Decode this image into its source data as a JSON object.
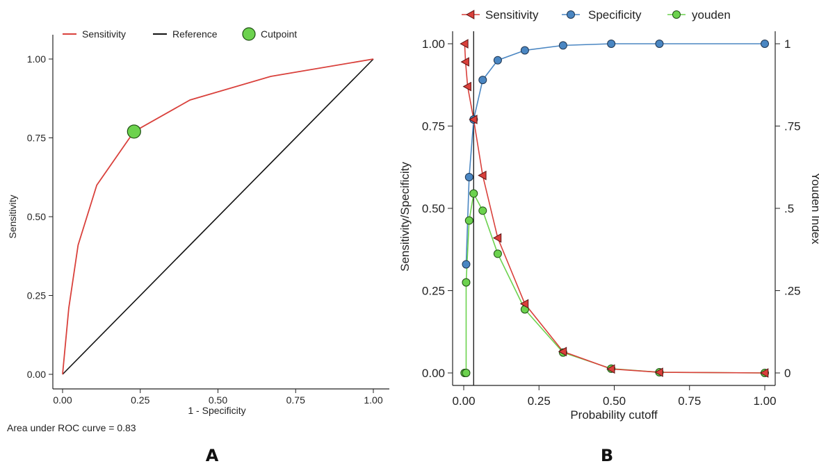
{
  "chart_data": [
    {
      "panel": "A",
      "type": "line",
      "xlabel": "1 - Specificity",
      "ylabel": "Sensitivity",
      "xlim": [
        0,
        1
      ],
      "ylim": [
        0,
        1
      ],
      "x_ticks": [
        "0.00",
        "0.25",
        "0.50",
        "0.75",
        "1.00"
      ],
      "y_ticks": [
        "0.00",
        "0.25",
        "0.50",
        "0.75",
        "1.00"
      ],
      "grid": false,
      "legend_position": "top",
      "legend": [
        "Sensitivity",
        "Reference",
        "Cutpoint"
      ],
      "series": [
        {
          "name": "Sensitivity",
          "color": "#d9403b",
          "points": [
            [
              0,
              0
            ],
            [
              0.02,
              0.21
            ],
            [
              0.05,
              0.41
            ],
            [
              0.11,
              0.6
            ],
            [
              0.23,
              0.77
            ],
            [
              0.41,
              0.87
            ],
            [
              0.67,
              0.945
            ],
            [
              1,
              1
            ]
          ]
        },
        {
          "name": "Reference",
          "color": "#111111",
          "points": [
            [
              0,
              0
            ],
            [
              1,
              1
            ]
          ]
        },
        {
          "name": "Cutpoint",
          "color": "#6cd24e",
          "points": [
            [
              0.23,
              0.77
            ]
          ]
        }
      ],
      "annotation": "Area under ROC curve = 0.83"
    },
    {
      "panel": "B",
      "type": "line",
      "xlabel": "Probability cutoff",
      "ylabel": "Sensitivity/Specificity",
      "y2label": "Youden Index",
      "xlim": [
        0,
        1
      ],
      "ylim": [
        0,
        1
      ],
      "y2lim": [
        0,
        1
      ],
      "x_ticks": [
        "0.00",
        "0.25",
        "0.50",
        "0.75",
        "1.00"
      ],
      "y_ticks": [
        "0.00",
        "0.25",
        "0.50",
        "0.75",
        "1.00"
      ],
      "y2_ticks": [
        "0",
        ".25",
        ".5",
        ".75",
        "1"
      ],
      "grid": false,
      "legend_position": "top",
      "legend": [
        "Sensitivity",
        "Specificity",
        "youden"
      ],
      "reference_line_x": 0.033,
      "series": [
        {
          "name": "Sensitivity",
          "color": "#d9403b",
          "marker": "triangle-left",
          "points": [
            [
              0.003,
              1.0
            ],
            [
              0.006,
              0.945
            ],
            [
              0.013,
              0.87
            ],
            [
              0.033,
              0.77
            ],
            [
              0.063,
              0.6
            ],
            [
              0.113,
              0.41
            ],
            [
              0.203,
              0.21
            ],
            [
              0.33,
              0.065
            ],
            [
              0.49,
              0.012
            ],
            [
              0.65,
              0.002
            ],
            [
              1.0,
              0.0
            ]
          ]
        },
        {
          "name": "Specificity",
          "color": "#4a86c2",
          "marker": "circle",
          "points": [
            [
              0.008,
              0.33
            ],
            [
              0.018,
              0.595
            ],
            [
              0.033,
              0.77
            ],
            [
              0.063,
              0.89
            ],
            [
              0.113,
              0.95
            ],
            [
              0.203,
              0.98
            ],
            [
              0.33,
              0.995
            ],
            [
              0.49,
              1.0
            ],
            [
              0.65,
              1.0
            ],
            [
              1.0,
              1.0
            ]
          ]
        },
        {
          "name": "youden",
          "color": "#6cd24e",
          "marker": "circle",
          "axis": "y2",
          "points": [
            [
              0.003,
              0.0
            ],
            [
              0.008,
              0.0
            ],
            [
              0.008,
              0.275
            ],
            [
              0.018,
              0.463
            ],
            [
              0.033,
              0.545
            ],
            [
              0.063,
              0.493
            ],
            [
              0.113,
              0.362
            ],
            [
              0.203,
              0.193
            ],
            [
              0.33,
              0.062
            ],
            [
              0.49,
              0.013
            ],
            [
              0.65,
              0.002
            ],
            [
              1.0,
              0.0
            ]
          ]
        }
      ]
    }
  ]
}
